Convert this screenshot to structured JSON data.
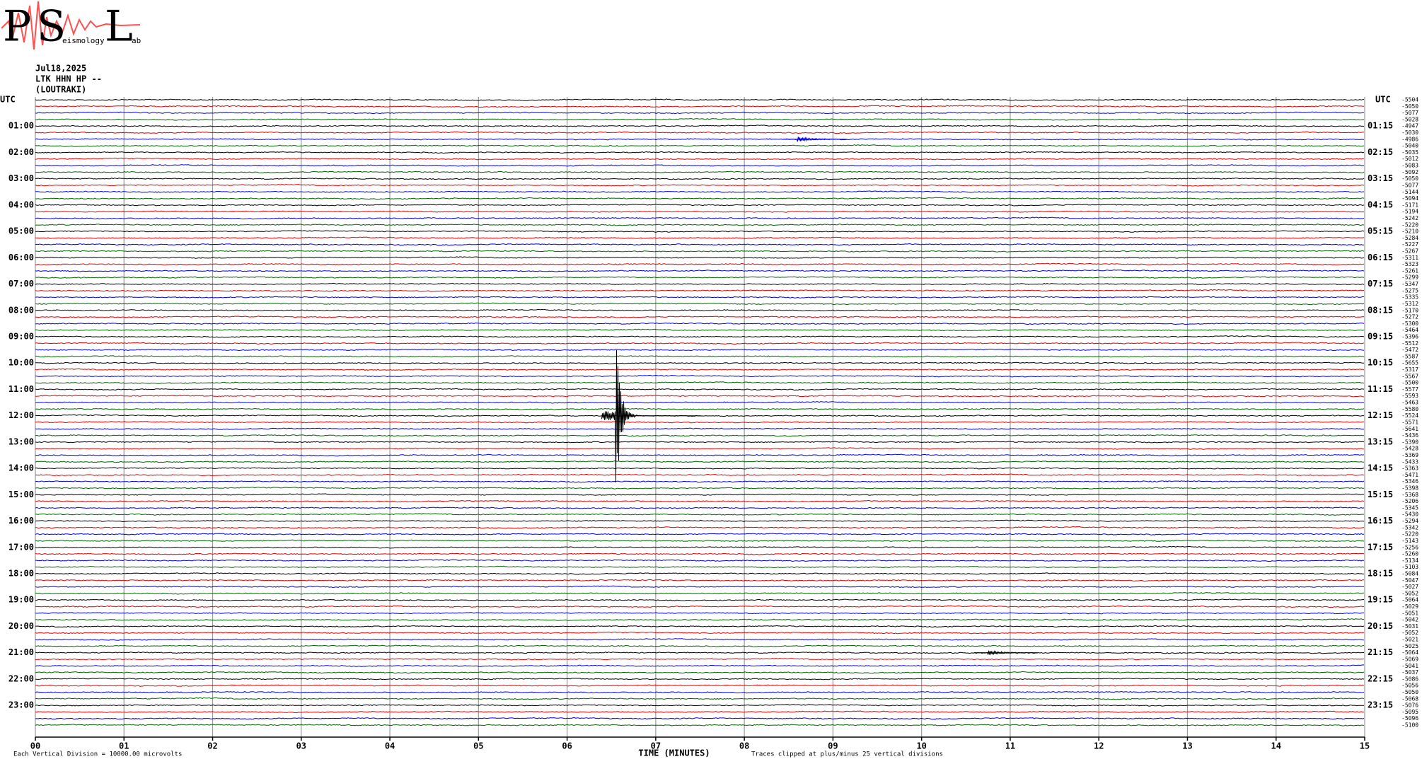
{
  "logo": {
    "letters": [
      "P",
      "S",
      "L"
    ],
    "words": [
      "eismology",
      "ab"
    ]
  },
  "chart_data": {
    "type": "helicorder",
    "header": [
      "Jul18,2025",
      "LTK HHN HP --",
      "(LOUTRAKI)"
    ],
    "xlabel": "TIME (MINUTES)",
    "xlim": [
      0,
      15
    ],
    "xticks": [
      {
        "value": 0,
        "label": "00"
      },
      {
        "value": 1,
        "label": "01"
      },
      {
        "value": 2,
        "label": "02"
      },
      {
        "value": 3,
        "label": "03"
      },
      {
        "value": 4,
        "label": "04"
      },
      {
        "value": 5,
        "label": "05"
      },
      {
        "value": 6,
        "label": "06"
      },
      {
        "value": 7,
        "label": "07"
      },
      {
        "value": 8,
        "label": "08"
      },
      {
        "value": 9,
        "label": "09"
      },
      10,
      11,
      12,
      13,
      14,
      15
    ],
    "grid": true,
    "trace_colors": [
      "#000000",
      "#e00000",
      "#0000e0",
      "#006400"
    ],
    "row_labels_left": [
      "UTC",
      "01:00",
      "02:00",
      "03:00",
      "04:00",
      "05:00",
      "06:00",
      "07:00",
      "08:00",
      "09:00",
      "10:00",
      "11:00",
      "12:00",
      "13:00",
      "14:00",
      "15:00",
      "16:00",
      "17:00",
      "18:00",
      "19:00",
      "20:00",
      "21:00",
      "22:00",
      "23:00"
    ],
    "row_labels_right": [
      "UTC",
      "01:15",
      "02:15",
      "03:15",
      "04:15",
      "05:15",
      "06:15",
      "07:15",
      "08:15",
      "09:15",
      "10:15",
      "11:15",
      "12:15",
      "13:15",
      "14:15",
      "15:15",
      "16:15",
      "17:15",
      "18:15",
      "19:15",
      "20:15",
      "21:15",
      "22:15",
      "23:15"
    ],
    "trace_offsets": [
      -5504,
      -5050,
      -5077,
      -5028,
      -4947,
      -5030,
      -4986,
      -5040,
      -5035,
      -5012,
      -5083,
      -5092,
      -5050,
      -5077,
      -5144,
      -5094,
      -5171,
      -5194,
      -5242,
      -5220,
      -5210,
      -5284,
      -5227,
      -5267,
      -5311,
      -5323,
      -5261,
      -5299,
      -5347,
      -5275,
      -5335,
      -5312,
      -5170,
      -5272,
      -5300,
      -5464,
      -5396,
      -5512,
      -5472,
      -5587,
      -5655,
      -5317,
      -5567,
      -5500,
      -5577,
      -5593,
      -5463,
      -5580,
      -5524,
      -5571,
      -5641,
      -5436,
      -5390,
      -5428,
      -5369,
      -5433,
      -5363,
      -5471,
      -5346,
      -5398,
      -5368,
      -5206,
      -5345,
      -5430,
      -5294,
      -5342,
      -5220,
      -5143,
      -5256,
      -5260,
      -5134,
      -5103,
      -5084,
      -5047,
      -5027,
      -5052,
      -5064,
      -5029,
      -5051,
      -5042,
      -5031,
      -5052,
      -5021,
      -5025,
      -5064,
      -5069,
      -5041,
      -5037,
      -5086,
      -5056,
      -5050,
      -5068,
      -5076,
      -5095,
      -5096,
      -5100
    ],
    "events": [
      {
        "trace": 6,
        "minute": 8.6,
        "amplitude_div": 0.7
      },
      {
        "trace": 48,
        "minute": 6.55,
        "amplitude_div": 25
      },
      {
        "trace": 84,
        "minute": 10.75,
        "amplitude_div": 0.6
      }
    ],
    "footer_left": "Each Vertical Division = 10000.00 microvolts",
    "footer_right": "Traces clipped at plus/minus 25 vertical divisions"
  }
}
